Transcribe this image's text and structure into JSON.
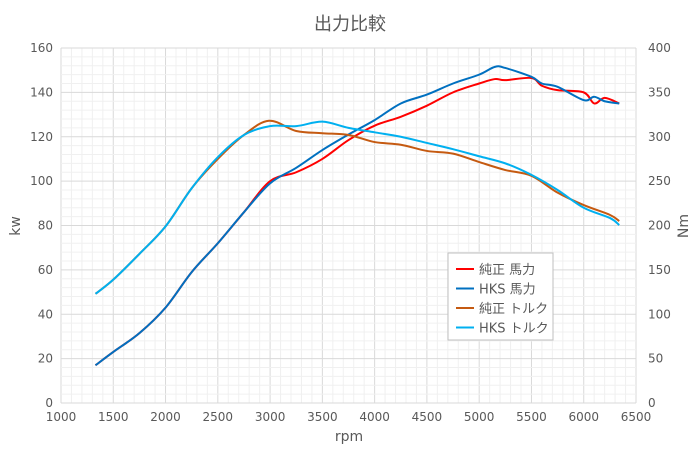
{
  "chart_data": {
    "type": "line",
    "title": "出力比較",
    "xlabel": "rpm",
    "ylabel": "kw",
    "y2label": "Nm",
    "xlim": [
      1000,
      6500
    ],
    "ylim": [
      0,
      160
    ],
    "y2lim": [
      0,
      400
    ],
    "xticks": [
      1000,
      1500,
      2000,
      2500,
      3000,
      3500,
      4000,
      4500,
      5000,
      5500,
      6000,
      6500
    ],
    "yticks": [
      0,
      20,
      40,
      60,
      80,
      100,
      120,
      140,
      160
    ],
    "y2ticks": [
      0,
      50,
      100,
      150,
      200,
      250,
      300,
      350,
      400
    ],
    "grid": true,
    "legend": "center-right",
    "series": [
      {
        "name": "純正 馬力",
        "axis": "left",
        "color": "#ff0000",
        "x": [
          1330,
          1500,
          1750,
          2000,
          2250,
          2500,
          2750,
          3000,
          3250,
          3500,
          3750,
          4000,
          4250,
          4500,
          4750,
          5000,
          5150,
          5250,
          5500,
          5600,
          5750,
          6000,
          6100,
          6200,
          6340
        ],
        "y": [
          17,
          23,
          31.5,
          43,
          59,
          72,
          86,
          100,
          104,
          110,
          118.5,
          125,
          129,
          134,
          140,
          144,
          146,
          145.5,
          146.5,
          143,
          141,
          140,
          135,
          137.5,
          135
        ]
      },
      {
        "name": "HKS  馬力",
        "axis": "left",
        "color": "#0070c0",
        "x": [
          1330,
          1500,
          1750,
          2000,
          2250,
          2500,
          2750,
          3000,
          3250,
          3500,
          3750,
          4000,
          4250,
          4500,
          4750,
          5000,
          5150,
          5250,
          5500,
          5600,
          5750,
          6000,
          6100,
          6200,
          6340
        ],
        "y": [
          17,
          23,
          31.5,
          43,
          59,
          72,
          86,
          99,
          106,
          114,
          121,
          127.5,
          135,
          139,
          144,
          148,
          151.5,
          151,
          147,
          144,
          142.5,
          136.5,
          138,
          136,
          135
        ]
      },
      {
        "name": "純正 トルク",
        "axis": "right",
        "color": "#c55a11",
        "x": [
          1330,
          1500,
          1750,
          2000,
          2250,
          2500,
          2750,
          2990,
          3250,
          3500,
          3750,
          4000,
          4250,
          4500,
          4750,
          5000,
          5250,
          5500,
          5750,
          6000,
          6250,
          6340
        ],
        "y": [
          123,
          139,
          168,
          199,
          242,
          275,
          302,
          318,
          306.5,
          304,
          302,
          294,
          291,
          284,
          281,
          271.5,
          262.5,
          256,
          237,
          223,
          212,
          205
        ]
      },
      {
        "name": "HKS トルク",
        "axis": "right",
        "color": "#00b0f0",
        "x": [
          1330,
          1500,
          1750,
          2000,
          2250,
          2500,
          2750,
          3000,
          3250,
          3500,
          3750,
          4000,
          4250,
          4500,
          4750,
          5000,
          5250,
          5500,
          5750,
          6000,
          6250,
          6340
        ],
        "y": [
          123,
          139,
          168,
          199,
          242,
          277,
          302,
          312,
          312,
          317,
          310,
          305,
          300,
          293,
          286,
          278,
          270,
          257,
          240,
          220,
          208.5,
          200.5
        ]
      }
    ]
  }
}
